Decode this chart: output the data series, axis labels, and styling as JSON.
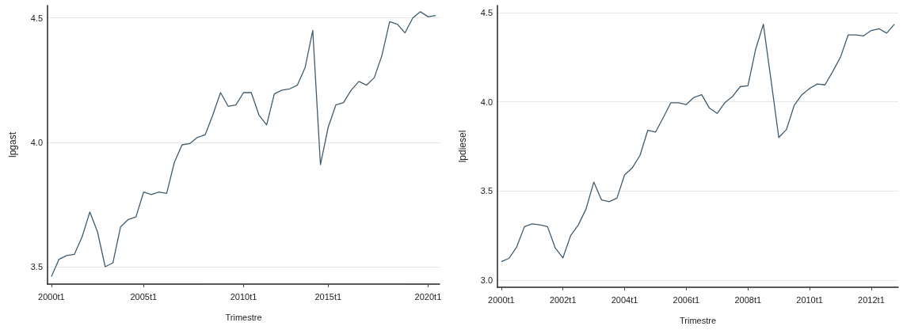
{
  "chart_data": [
    {
      "type": "line",
      "xlabel": "Trimestre",
      "ylabel": "lpgast",
      "ylim": [
        3.43,
        4.55
      ],
      "yticks": [
        {
          "value": 3.5,
          "label": "3.5"
        },
        {
          "value": 4.0,
          "label": "4.0"
        },
        {
          "value": 4.5,
          "label": "4.5"
        }
      ],
      "grid": "y",
      "marker": "none",
      "line_style": "solid",
      "categories": [
        "2000t1",
        null,
        null,
        null,
        null,
        null,
        null,
        null,
        null,
        null,
        null,
        null,
        "2005t1",
        null,
        null,
        null,
        null,
        null,
        null,
        null,
        null,
        null,
        null,
        null,
        null,
        "2010t1",
        null,
        null,
        null,
        null,
        null,
        null,
        null,
        null,
        null,
        null,
        "2015t1",
        null,
        null,
        null,
        null,
        null,
        null,
        null,
        null,
        null,
        null,
        null,
        null,
        "2020t1",
        null
      ],
      "series": [
        {
          "color": "#3f5b70",
          "values": [
            3.46,
            3.53,
            3.545,
            3.55,
            3.62,
            3.72,
            3.64,
            3.5,
            3.515,
            3.66,
            3.69,
            3.7,
            3.8,
            3.79,
            3.8,
            3.795,
            3.92,
            3.99,
            3.995,
            4.02,
            4.03,
            4.11,
            4.2,
            4.145,
            4.15,
            4.2,
            4.2,
            4.11,
            4.07,
            4.195,
            4.21,
            4.215,
            4.23,
            4.3,
            4.45,
            3.91,
            4.06,
            4.15,
            4.16,
            4.21,
            4.245,
            4.23,
            4.26,
            4.35,
            4.485,
            4.475,
            4.44,
            4.5,
            4.525,
            4.505,
            4.51
          ]
        }
      ]
    },
    {
      "type": "line",
      "xlabel": "Trimestre",
      "ylabel": "lpdiesel",
      "ylim": [
        2.96,
        4.54
      ],
      "yticks": [
        {
          "value": 3.0,
          "label": "3.0"
        },
        {
          "value": 3.5,
          "label": "3.5"
        },
        {
          "value": 4.0,
          "label": "4.0"
        },
        {
          "value": 4.5,
          "label": "4.5"
        }
      ],
      "grid": "y",
      "marker": "none",
      "line_style": "solid",
      "categories": [
        "2000t1",
        null,
        null,
        null,
        null,
        null,
        null,
        null,
        "2002t1",
        null,
        null,
        null,
        null,
        null,
        null,
        null,
        "2004t1",
        null,
        null,
        null,
        null,
        null,
        null,
        null,
        "2006t1",
        null,
        null,
        null,
        null,
        null,
        null,
        null,
        "2008t1",
        null,
        null,
        null,
        null,
        null,
        null,
        null,
        "2010t1",
        null,
        null,
        null,
        null,
        null,
        null,
        null,
        "2012t1",
        null,
        null,
        null
      ],
      "series": [
        {
          "color": "#3f5b70",
          "values": [
            3.104,
            3.122,
            3.186,
            3.3,
            3.316,
            3.31,
            3.3,
            3.18,
            3.125,
            3.25,
            3.31,
            3.4,
            3.55,
            3.45,
            3.44,
            3.46,
            3.59,
            3.63,
            3.7,
            3.84,
            3.83,
            3.91,
            3.995,
            3.995,
            3.985,
            4.025,
            4.04,
            3.965,
            3.935,
            3.995,
            4.03,
            4.085,
            4.09,
            4.295,
            4.435,
            4.12,
            3.8,
            3.845,
            3.98,
            4.04,
            4.075,
            4.1,
            4.095,
            4.17,
            4.25,
            4.375,
            4.375,
            4.37,
            4.4,
            4.41,
            4.385,
            4.435
          ]
        }
      ]
    }
  ]
}
